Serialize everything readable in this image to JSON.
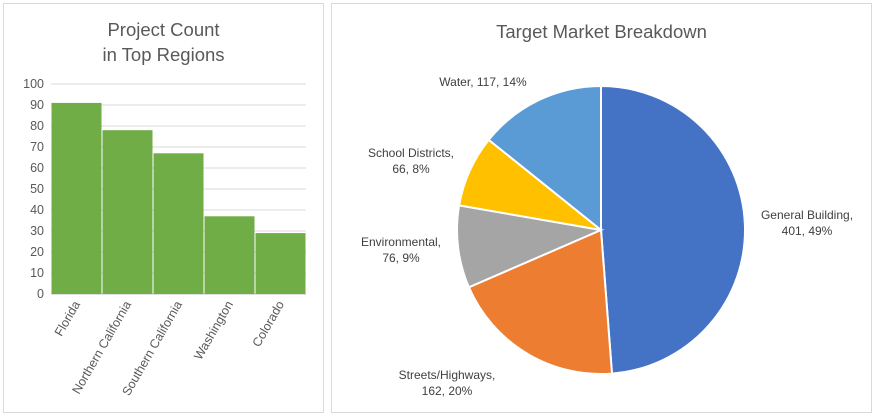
{
  "chart_data": [
    {
      "type": "bar",
      "title": "Project Count in Top Regions",
      "title_lines": [
        "Project Count",
        "in Top Regions"
      ],
      "categories": [
        "Florida",
        "Northern California",
        "Southern California",
        "Washington",
        "Colorado"
      ],
      "values": [
        91,
        78,
        67,
        37,
        29
      ],
      "ylim": [
        0,
        100
      ],
      "yticks": [
        "0",
        "10",
        "20",
        "30",
        "40",
        "50",
        "60",
        "70",
        "80",
        "90",
        "100"
      ],
      "xlabel": "",
      "ylabel": "",
      "grid": true,
      "colors": {
        "bar": "#70ad47",
        "grid": "#d9d9d9",
        "axis": "#bfbfbf"
      }
    },
    {
      "type": "pie",
      "title": "Target Market Breakdown",
      "slices": [
        {
          "label": "General Building",
          "value": 401,
          "percent": "49%",
          "color": "#4472c4",
          "text": [
            "General Building,",
            "401, 49%"
          ]
        },
        {
          "label": "Streets/Highways",
          "value": 162,
          "percent": "20%",
          "color": "#ed7d31",
          "text": [
            "Streets/Highways,",
            "162, 20%"
          ]
        },
        {
          "label": "Environmental",
          "value": 76,
          "percent": "9%",
          "color": "#a5a5a5",
          "text": [
            "Environmental,",
            "76, 9%"
          ]
        },
        {
          "label": "School Districts",
          "value": 66,
          "percent": "8%",
          "color": "#ffc000",
          "text": [
            "School Districts,",
            "66, 8%"
          ]
        },
        {
          "label": "Water",
          "value": 117,
          "percent": "14%",
          "color": "#5b9bd5",
          "text": [
            "Water, 117, 14%"
          ]
        }
      ]
    }
  ]
}
